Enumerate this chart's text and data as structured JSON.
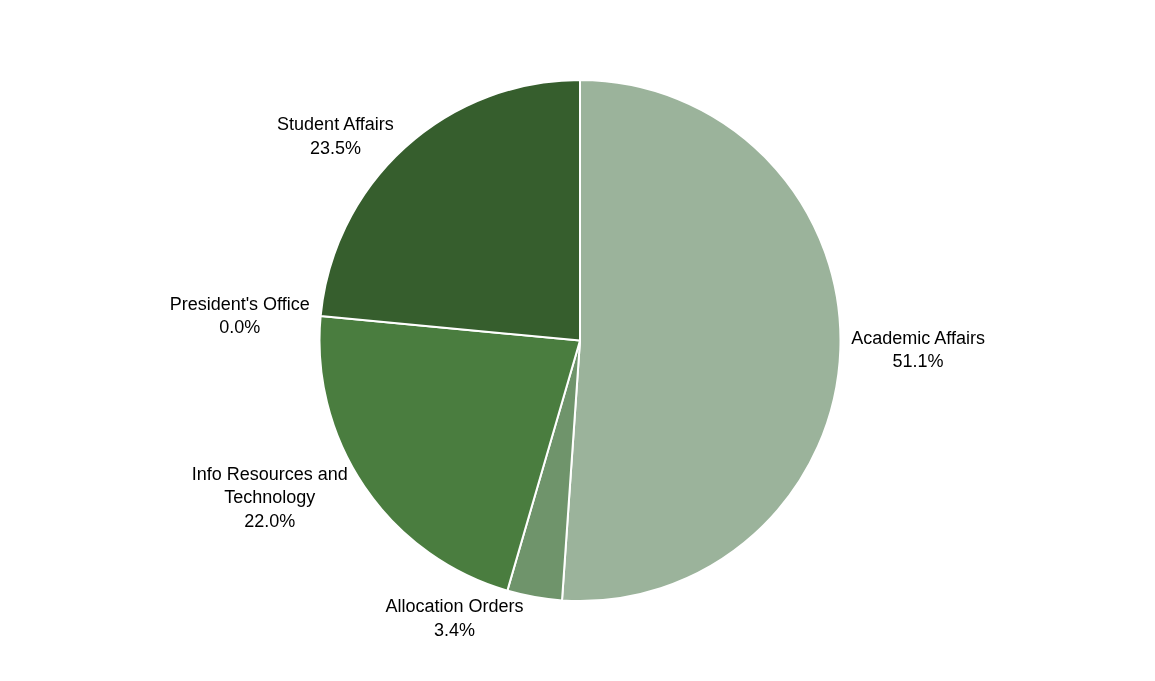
{
  "chart_data": {
    "type": "pie",
    "categories": [
      "Academic Affairs",
      "Allocation Orders",
      "Info Resources and Technology",
      "President's Office",
      "Student Affairs"
    ],
    "values": [
      51.1,
      3.4,
      22.0,
      0.0,
      23.5
    ],
    "value_labels": [
      "51.1%",
      "3.4%",
      "22.0%",
      "0.0%",
      "23.5%"
    ],
    "colors": [
      "#9bb39b",
      "#6f946b",
      "#4a7d3f",
      "#437a38",
      "#365e2d"
    ],
    "legend": false
  }
}
